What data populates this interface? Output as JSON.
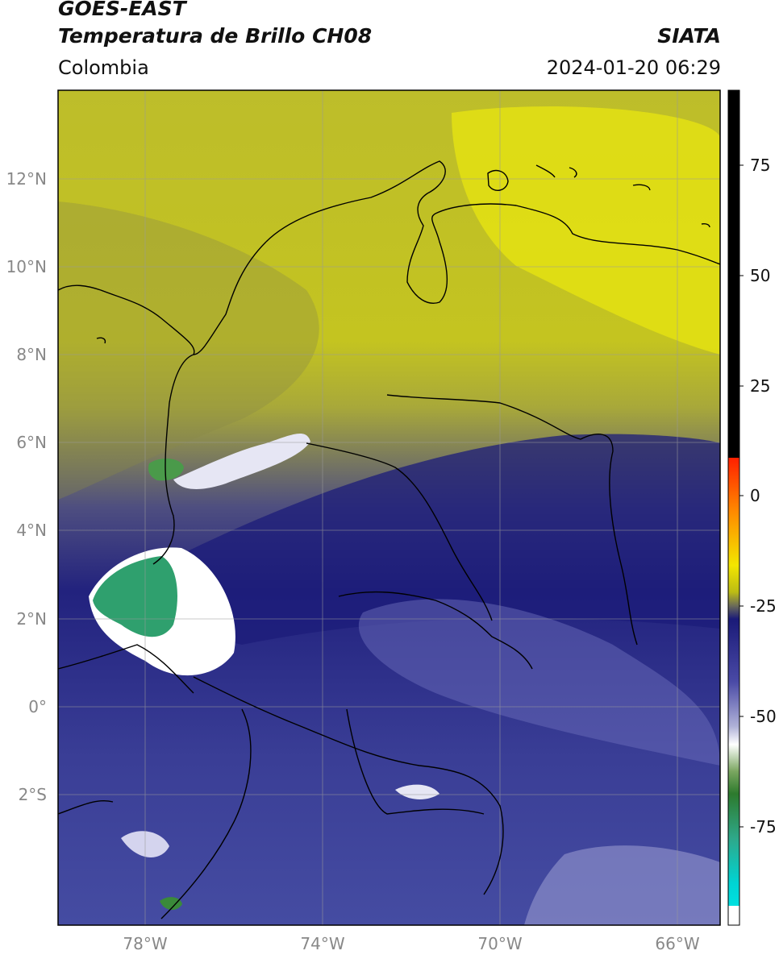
{
  "header": {
    "line1": "GOES-EAST",
    "line2": "Temperatura de Brillo CH08",
    "brand": "SIATA",
    "region": "Colombia",
    "timestamp": "2024-01-20 06:29"
  },
  "map": {
    "lat_labels": [
      "12°N",
      "10°N",
      "8°N",
      "6°N",
      "4°N",
      "2°N",
      "0°",
      "2°S"
    ],
    "lon_labels": [
      "78°W",
      "74°W",
      "70°W",
      "66°W"
    ]
  },
  "colorbar": {
    "labels": [
      "75",
      "50",
      "25",
      "0",
      "-25",
      "-50",
      "-75"
    ]
  }
}
